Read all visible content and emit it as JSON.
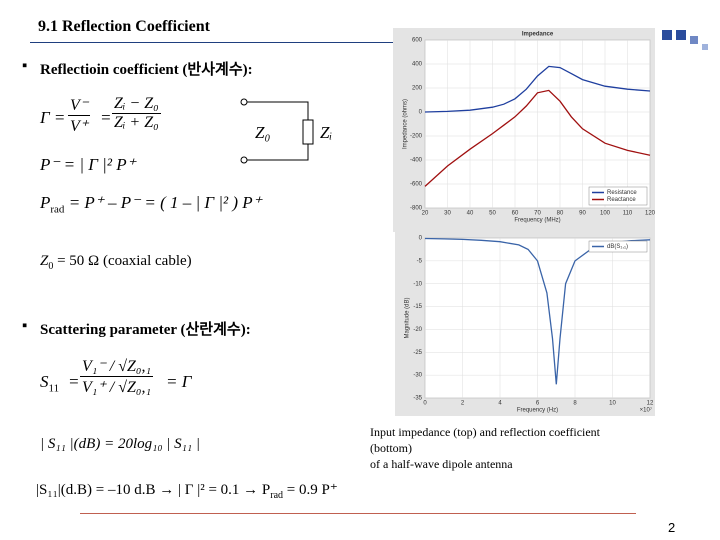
{
  "header": {
    "title": "9.1 Reflection Coefficient"
  },
  "bullets": [
    "Reflectioin coefficient (반사계수):",
    "Scattering parameter (산란계수):"
  ],
  "equations": {
    "gamma": {
      "lhs": "Γ =",
      "num1": "V⁻",
      "den1": "V⁺",
      "eq": "=",
      "num2": "Zᵢ − Z₀",
      "den2": "Zᵢ + Z₀"
    },
    "pminus": "P⁻ = | Γ |² P⁺",
    "prad": {
      "main": "P",
      "sub": "rad",
      "rest": " = P⁺ – P⁻ = ( 1 – | Γ |² ) P⁺"
    },
    "z0": {
      "main": "Z",
      "sub": "0",
      "rest": " = 50 Ω (coaxial cable)"
    },
    "s11": {
      "main": "S",
      "sub": "11",
      "eq": "=",
      "num": "V₁⁻ / √Z₀,₁",
      "den": "V₁⁺ / √Z₀,₁",
      "rhs": "= Γ"
    },
    "s11db": "| S₁₁ |(dB) = 20log₁₀ | S₁₁ |",
    "final": {
      "a": "|S₁₁|(d.B) = –10 d.B → | Γ |² = 0.1 → P",
      "sub": "rad",
      "b": " = 0.9 P⁺"
    }
  },
  "circuit": {
    "z0": "Z₀",
    "zi": "Zᵢ"
  },
  "caption": [
    "Input impedance (top) and reflection coefficient",
    "(bottom)",
    "of a half-wave dipole antenna"
  ],
  "page_number": "2",
  "plots": [
    {
      "type": "line",
      "title": "Impedance",
      "xlabel": "Frequency (MHz)",
      "ylabel": "Impedance (ohms)",
      "xlim": [
        20,
        120
      ],
      "ylim": [
        -800,
        600
      ],
      "xticks": [
        20,
        30,
        40,
        50,
        60,
        70,
        80,
        90,
        100,
        110,
        120
      ],
      "yticks": [
        600,
        400,
        200,
        0,
        -200,
        -400,
        -600,
        -800
      ],
      "grid": true,
      "legend": "lower right",
      "x": [
        20,
        30,
        40,
        50,
        55,
        60,
        65,
        70,
        75,
        80,
        85,
        90,
        100,
        110,
        120
      ],
      "series": [
        {
          "name": "Resistance",
          "color": "#1f3f9f",
          "values": [
            0,
            5,
            15,
            40,
            65,
            110,
            190,
            300,
            380,
            370,
            320,
            270,
            215,
            190,
            175
          ]
        },
        {
          "name": "Reactance",
          "color": "#a01010",
          "values": [
            -620,
            -450,
            -310,
            -180,
            -110,
            -40,
            50,
            160,
            180,
            90,
            -40,
            -140,
            -260,
            -320,
            -360
          ]
        }
      ]
    },
    {
      "type": "line",
      "xlabel": "Frequency (Hz)",
      "ylabel": "Magnitude (dB)",
      "x_multiplier": "×10⁷",
      "xlim": [
        0,
        12
      ],
      "ylim": [
        -35,
        0
      ],
      "xticks": [
        0,
        2,
        4,
        6,
        8,
        10,
        12
      ],
      "yticks": [
        0,
        -5,
        -10,
        -15,
        -20,
        -25,
        -30,
        -35
      ],
      "grid": true,
      "legend": "upper right",
      "x": [
        0,
        1,
        2,
        3,
        4,
        5,
        5.5,
        6,
        6.5,
        6.8,
        7,
        7.2,
        7.5,
        8,
        9,
        10,
        11,
        12
      ],
      "series": [
        {
          "name": "dB(S₁,₁)",
          "color": "#3a64a8",
          "values": [
            -0.1,
            -0.2,
            -0.3,
            -0.5,
            -0.8,
            -1.5,
            -2.5,
            -5,
            -12,
            -22,
            -32,
            -22,
            -10,
            -5,
            -2,
            -1,
            -0.6,
            -0.4
          ]
        }
      ]
    }
  ]
}
